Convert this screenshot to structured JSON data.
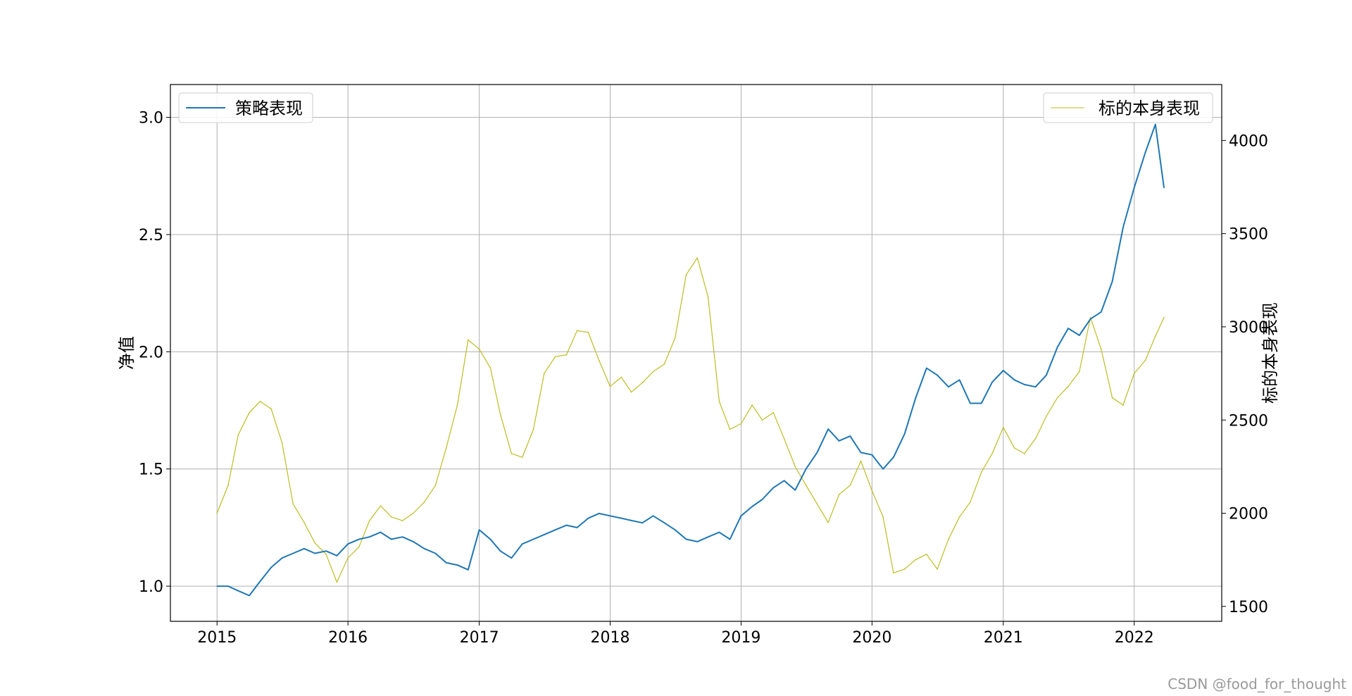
{
  "chart_data": {
    "type": "line",
    "title": "",
    "xlabel": "",
    "ylabel_left": "净值",
    "ylabel_right": "标的本身表现",
    "x_ticks": [
      "2015",
      "2016",
      "2017",
      "2018",
      "2019",
      "2020",
      "2021",
      "2022"
    ],
    "y_left_ticks": [
      "1.0",
      "1.5",
      "2.0",
      "2.5",
      "3.0"
    ],
    "y_right_ticks": [
      "1500",
      "2000",
      "2500",
      "3000",
      "3500",
      "4000"
    ],
    "y_left_lim": [
      0.85,
      3.14
    ],
    "y_right_lim": [
      1420,
      4300
    ],
    "x_lim": [
      "2014-08-24",
      "2022-09-02"
    ],
    "grid": true,
    "legend_left": {
      "label": "策略表现",
      "position": "upper-left"
    },
    "legend_right": {
      "label": "标的本身表现",
      "position": "upper-right"
    },
    "colors": {
      "strategy": "#1f77b4",
      "underlying": "#bcbd22",
      "grid": "#b0b0b0"
    },
    "series": [
      {
        "name": "策略表现",
        "axis": "left",
        "x": [
          "2015-01-01",
          "2015-02-01",
          "2015-03-01",
          "2015-04-01",
          "2015-05-01",
          "2015-06-01",
          "2015-07-01",
          "2015-08-01",
          "2015-09-01",
          "2015-10-01",
          "2015-11-01",
          "2015-12-01",
          "2016-01-01",
          "2016-02-01",
          "2016-03-01",
          "2016-04-01",
          "2016-05-01",
          "2016-06-01",
          "2016-07-01",
          "2016-08-01",
          "2016-09-01",
          "2016-10-01",
          "2016-11-01",
          "2016-12-01",
          "2017-01-01",
          "2017-02-01",
          "2017-03-01",
          "2017-04-01",
          "2017-05-01",
          "2017-06-01",
          "2017-07-01",
          "2017-08-01",
          "2017-09-01",
          "2017-10-01",
          "2017-11-01",
          "2017-12-01",
          "2018-01-01",
          "2018-02-01",
          "2018-03-01",
          "2018-04-01",
          "2018-05-01",
          "2018-06-01",
          "2018-07-01",
          "2018-08-01",
          "2018-09-01",
          "2018-10-01",
          "2018-11-01",
          "2018-12-01",
          "2019-01-01",
          "2019-02-01",
          "2019-03-01",
          "2019-04-01",
          "2019-05-01",
          "2019-06-01",
          "2019-07-01",
          "2019-08-01",
          "2019-09-01",
          "2019-10-01",
          "2019-11-01",
          "2019-12-01",
          "2020-01-01",
          "2020-02-01",
          "2020-03-01",
          "2020-04-01",
          "2020-05-01",
          "2020-06-01",
          "2020-07-01",
          "2020-08-01",
          "2020-09-01",
          "2020-10-01",
          "2020-11-01",
          "2020-12-01",
          "2021-01-01",
          "2021-02-01",
          "2021-03-01",
          "2021-04-01",
          "2021-05-01",
          "2021-06-01",
          "2021-07-01",
          "2021-08-01",
          "2021-09-01",
          "2021-10-01",
          "2021-11-01",
          "2021-12-01",
          "2022-01-01",
          "2022-02-01",
          "2022-03-01",
          "2022-03-25"
        ],
        "values": [
          1.0,
          1.0,
          0.98,
          0.96,
          1.02,
          1.08,
          1.12,
          1.14,
          1.16,
          1.14,
          1.15,
          1.13,
          1.18,
          1.2,
          1.21,
          1.23,
          1.2,
          1.21,
          1.19,
          1.16,
          1.14,
          1.1,
          1.09,
          1.07,
          1.24,
          1.2,
          1.15,
          1.12,
          1.18,
          1.2,
          1.22,
          1.24,
          1.26,
          1.25,
          1.29,
          1.31,
          1.3,
          1.29,
          1.28,
          1.27,
          1.3,
          1.27,
          1.24,
          1.2,
          1.19,
          1.21,
          1.23,
          1.2,
          1.3,
          1.34,
          1.37,
          1.42,
          1.45,
          1.41,
          1.5,
          1.57,
          1.67,
          1.62,
          1.64,
          1.57,
          1.56,
          1.5,
          1.55,
          1.65,
          1.8,
          1.93,
          1.9,
          1.85,
          1.88,
          1.78,
          1.78,
          1.87,
          1.92,
          1.88,
          1.86,
          1.85,
          1.9,
          2.02,
          2.1,
          2.07,
          2.14,
          2.17,
          2.3,
          2.53,
          2.7,
          2.85,
          2.97,
          2.7
        ]
      },
      {
        "name": "标的本身表现",
        "axis": "right",
        "x": [
          "2015-01-01",
          "2015-02-01",
          "2015-03-01",
          "2015-04-01",
          "2015-05-01",
          "2015-06-01",
          "2015-07-01",
          "2015-08-01",
          "2015-09-01",
          "2015-10-01",
          "2015-11-01",
          "2015-12-01",
          "2016-01-01",
          "2016-02-01",
          "2016-03-01",
          "2016-04-01",
          "2016-05-01",
          "2016-06-01",
          "2016-07-01",
          "2016-08-01",
          "2016-09-01",
          "2016-10-01",
          "2016-11-01",
          "2016-12-01",
          "2017-01-01",
          "2017-02-01",
          "2017-03-01",
          "2017-04-01",
          "2017-05-01",
          "2017-06-01",
          "2017-07-01",
          "2017-08-01",
          "2017-09-01",
          "2017-10-01",
          "2017-11-01",
          "2017-12-01",
          "2018-01-01",
          "2018-02-01",
          "2018-03-01",
          "2018-04-01",
          "2018-05-01",
          "2018-06-01",
          "2018-07-01",
          "2018-08-01",
          "2018-09-01",
          "2018-10-01",
          "2018-11-01",
          "2018-12-01",
          "2019-01-01",
          "2019-02-01",
          "2019-03-01",
          "2019-04-01",
          "2019-05-01",
          "2019-06-01",
          "2019-07-01",
          "2019-08-01",
          "2019-09-01",
          "2019-10-01",
          "2019-11-01",
          "2019-12-01",
          "2020-01-01",
          "2020-02-01",
          "2020-03-01",
          "2020-04-01",
          "2020-05-01",
          "2020-06-01",
          "2020-07-01",
          "2020-08-01",
          "2020-09-01",
          "2020-10-01",
          "2020-11-01",
          "2020-12-01",
          "2021-01-01",
          "2021-02-01",
          "2021-03-01",
          "2021-04-01",
          "2021-05-01",
          "2021-06-01",
          "2021-07-01",
          "2021-08-01",
          "2021-09-01",
          "2021-10-01",
          "2021-11-01",
          "2021-12-01",
          "2022-01-01",
          "2022-02-01",
          "2022-03-01",
          "2022-03-25"
        ],
        "values": [
          2000,
          2150,
          2420,
          2540,
          2600,
          2560,
          2380,
          2050,
          1950,
          1840,
          1780,
          1630,
          1760,
          1820,
          1960,
          2040,
          1980,
          1960,
          2000,
          2060,
          2150,
          2350,
          2580,
          2930,
          2880,
          2780,
          2530,
          2320,
          2300,
          2450,
          2750,
          2840,
          2850,
          2980,
          2970,
          2820,
          2680,
          2730,
          2650,
          2700,
          2760,
          2800,
          2940,
          3280,
          3370,
          3160,
          2600,
          2450,
          2480,
          2580,
          2500,
          2540,
          2400,
          2250,
          2150,
          2050,
          1950,
          2100,
          2150,
          2280,
          2120,
          1980,
          1680,
          1700,
          1750,
          1780,
          1700,
          1860,
          1980,
          2060,
          2220,
          2320,
          2460,
          2350,
          2320,
          2400,
          2520,
          2620,
          2680,
          2760,
          3050,
          2880,
          2620,
          2580,
          2750,
          2820,
          2950,
          3050
        ]
      }
    ]
  },
  "watermark": "CSDN @food_for_thought"
}
